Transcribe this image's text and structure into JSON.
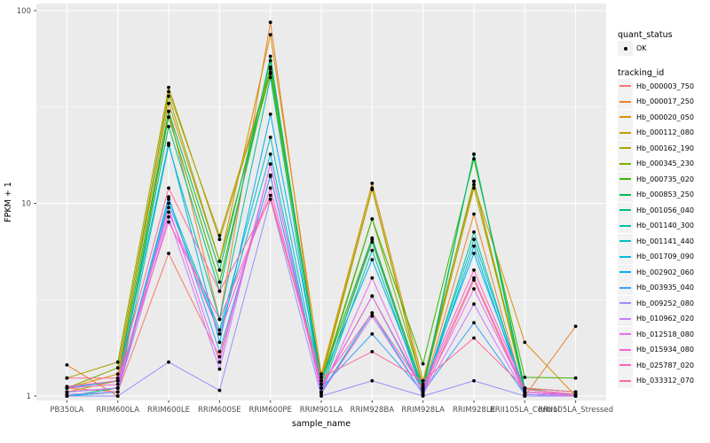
{
  "colors": {
    "panel_bg": "#EBEBEB",
    "grid": "#FFFFFF",
    "tick_text": "#4D4D4D",
    "axis_title_text": "#000000",
    "point": "#000000",
    "legend_key_bg": "#F2F2F2"
  },
  "legend": {
    "quant_status_title": "quant_status",
    "quant_status_items": [
      {
        "label": "OK",
        "marker": "black-point"
      }
    ],
    "tracking_id_title": "tracking_id"
  },
  "chart_data": {
    "type": "line",
    "title": "",
    "xlabel": "sample_name",
    "ylabel": "FPKM + 1",
    "y_scale": "log10",
    "y_ticks": [
      1,
      10,
      100
    ],
    "y_minor_ticks": [
      3.162,
      31.62
    ],
    "ylim": [
      0.93,
      104
    ],
    "grid": true,
    "legend_position": "right",
    "categories": [
      "PB350LA",
      "RRIM600LA",
      "RRIM600LE",
      "RRIM600SE",
      "RRIM600PE",
      "RRIM901LA",
      "RRIM928BA",
      "RRIM928LA",
      "RRIM928LE",
      "RRII105LA_Control",
      "RRII105LA_Stressed"
    ],
    "series": [
      {
        "name": "Hb_000003_750",
        "color": "#F8766D",
        "values": [
          1.1,
          1.05,
          5.5,
          1.6,
          14.0,
          1.05,
          2.6,
          1.02,
          4.0,
          1.02,
          1.0
        ]
      },
      {
        "name": "Hb_000017_250",
        "color": "#EA8331",
        "values": [
          1.45,
          1.0,
          30.0,
          2.5,
          87.0,
          1.1,
          6.5,
          1.05,
          8.8,
          1.0,
          2.3
        ]
      },
      {
        "name": "Hb_000020_050",
        "color": "#D89000",
        "values": [
          1.1,
          1.3,
          33.0,
          5.0,
          75.0,
          1.3,
          12.7,
          1.2,
          12.5,
          1.9,
          1.0
        ]
      },
      {
        "name": "Hb_000112_080",
        "color": "#C09B00",
        "values": [
          1.05,
          1.2,
          38.0,
          6.8,
          50.0,
          1.2,
          11.8,
          1.1,
          12.0,
          1.1,
          1.05
        ]
      },
      {
        "name": "Hb_000162_190",
        "color": "#A3A500",
        "values": [
          1.24,
          1.5,
          40.0,
          6.5,
          48.0,
          1.25,
          12.0,
          1.12,
          13.0,
          1.05,
          1.0
        ]
      },
      {
        "name": "Hb_000345_230",
        "color": "#7CAE00",
        "values": [
          1.1,
          1.4,
          36.0,
          5.0,
          47.0,
          1.2,
          8.3,
          1.15,
          13.0,
          1.1,
          1.0
        ]
      },
      {
        "name": "Hb_000735_020",
        "color": "#39B600",
        "values": [
          1.05,
          1.1,
          28.0,
          3.9,
          51.0,
          1.15,
          8.3,
          1.47,
          17.0,
          1.25,
          1.24
        ]
      },
      {
        "name": "Hb_000853_250",
        "color": "#00BB4E",
        "values": [
          1.1,
          1.2,
          30.0,
          4.5,
          55.0,
          1.2,
          6.6,
          1.1,
          18.0,
          1.1,
          1.05
        ]
      },
      {
        "name": "Hb_001056_040",
        "color": "#00BF7D",
        "values": [
          1.0,
          1.1,
          25.0,
          3.5,
          58.0,
          1.1,
          6.3,
          1.05,
          18.0,
          1.05,
          1.0
        ]
      },
      {
        "name": "Hb_001140_300",
        "color": "#00C1A3",
        "values": [
          1.0,
          1.05,
          20.0,
          2.5,
          45.0,
          1.05,
          5.7,
          1.03,
          7.1,
          1.02,
          1.0
        ]
      },
      {
        "name": "Hb_001141_440",
        "color": "#00BFC4",
        "values": [
          1.05,
          1.1,
          10.5,
          2.2,
          22.0,
          1.1,
          3.3,
          1.05,
          6.5,
          1.05,
          1.0
        ]
      },
      {
        "name": "Hb_001709_090",
        "color": "#00BAE0",
        "values": [
          1.0,
          1.05,
          10.0,
          2.1,
          18.0,
          1.05,
          2.7,
          1.02,
          6.0,
          1.0,
          1.0
        ]
      },
      {
        "name": "Hb_002902_060",
        "color": "#00B0F6",
        "values": [
          1.1,
          1.2,
          20.5,
          1.9,
          29.0,
          1.2,
          5.1,
          1.1,
          5.5,
          1.08,
          1.02
        ]
      },
      {
        "name": "Hb_003935_040",
        "color": "#35A2FF",
        "values": [
          1.05,
          1.1,
          10.8,
          1.7,
          13.8,
          1.1,
          2.1,
          1.05,
          2.4,
          1.02,
          1.0
        ]
      },
      {
        "name": "Hb_009252_080",
        "color": "#9590FF",
        "values": [
          1.0,
          1.0,
          1.5,
          1.07,
          10.5,
          1.0,
          1.2,
          1.0,
          1.2,
          1.0,
          1.0
        ]
      },
      {
        "name": "Hb_010962_020",
        "color": "#C77CFF",
        "values": [
          1.02,
          1.05,
          8.5,
          1.38,
          16.0,
          1.03,
          2.6,
          1.02,
          3.0,
          1.02,
          1.0
        ]
      },
      {
        "name": "Hb_012518_080",
        "color": "#E76BF3",
        "values": [
          1.05,
          1.1,
          9.5,
          1.5,
          16.0,
          1.05,
          4.1,
          1.05,
          3.6,
          1.05,
          1.0
        ]
      },
      {
        "name": "Hb_015934_080",
        "color": "#FA62DB",
        "values": [
          1.1,
          1.15,
          9.0,
          2.1,
          12.0,
          1.1,
          3.3,
          1.08,
          4.1,
          1.05,
          1.02
        ]
      },
      {
        "name": "Hb_025787_020",
        "color": "#FF62BC",
        "values": [
          1.12,
          1.2,
          8.0,
          2.5,
          11.0,
          1.15,
          2.7,
          1.1,
          4.5,
          1.08,
          1.02
        ]
      },
      {
        "name": "Hb_033312_070",
        "color": "#FF6A98",
        "values": [
          1.24,
          1.24,
          12.0,
          3.5,
          10.5,
          1.25,
          1.7,
          1.2,
          2.0,
          1.1,
          1.05
        ]
      }
    ]
  }
}
